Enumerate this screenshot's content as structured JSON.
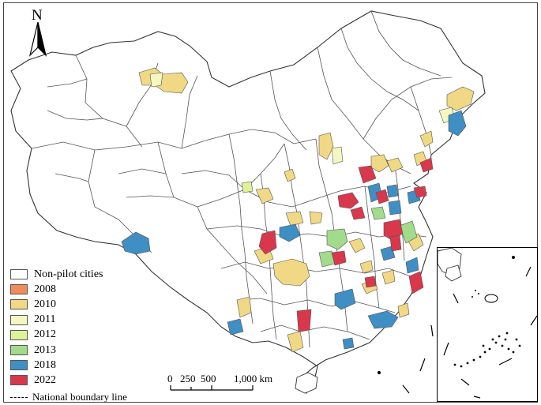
{
  "map": {
    "north_label": "N",
    "scale": {
      "ticks": [
        "0",
        "250",
        "500",
        "1,000 km"
      ]
    },
    "legend": {
      "items": [
        {
          "label": "Non-pilot cities",
          "color": "#ffffff"
        },
        {
          "label": "2008",
          "color": "#f08c5a"
        },
        {
          "label": "2010",
          "color": "#f0d884"
        },
        {
          "label": "2011",
          "color": "#f5f7c0"
        },
        {
          "label": "2012",
          "color": "#dff29a"
        },
        {
          "label": "2013",
          "color": "#a2db8c"
        },
        {
          "label": "2018",
          "color": "#3f8ec4"
        },
        {
          "label": "2022",
          "color": "#d9374c"
        }
      ],
      "boundary_label": "National boundary line"
    },
    "colors": {
      "boundary": "#3a3a3a",
      "frame": "#444444"
    }
  }
}
